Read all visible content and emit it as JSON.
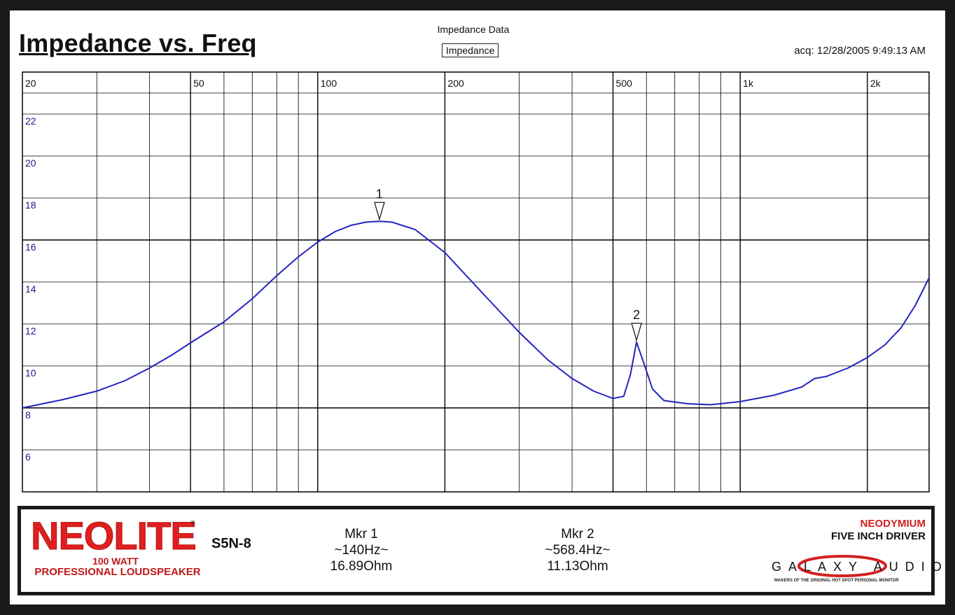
{
  "title": "Impedance vs. Freq",
  "data_title": "Impedance Data",
  "legend_label": "Impedance",
  "acq": "acq: 12/28/2005 9:49:13 AM",
  "colors": {
    "trace": "#2424c0",
    "grid": "#000000",
    "brand": "#e02020"
  },
  "chart_data": {
    "type": "line",
    "x_scale": "log",
    "xlim": [
      20,
      2800
    ],
    "ylim": [
      4,
      24
    ],
    "x_ticks": [
      {
        "v": 20,
        "label": "20"
      },
      {
        "v": 50,
        "label": "50"
      },
      {
        "v": 100,
        "label": "100"
      },
      {
        "v": 200,
        "label": "200"
      },
      {
        "v": 500,
        "label": "500"
      },
      {
        "v": 1000,
        "label": "1k"
      },
      {
        "v": 2000,
        "label": "2k"
      }
    ],
    "x_grid": [
      30,
      40,
      50,
      60,
      70,
      80,
      90,
      100,
      200,
      300,
      400,
      500,
      600,
      700,
      800,
      900,
      1000,
      2000
    ],
    "y_ticks": [
      {
        "v": 22,
        "label": "22"
      },
      {
        "v": 20,
        "label": "20"
      },
      {
        "v": 18,
        "label": "18"
      },
      {
        "v": 16,
        "label": "16"
      },
      {
        "v": 14,
        "label": "14"
      },
      {
        "v": 12,
        "label": "12"
      },
      {
        "v": 10,
        "label": "10"
      },
      {
        "v": 8,
        "label": "8"
      },
      {
        "v": 6,
        "label": "6"
      }
    ],
    "top_label": {
      "label": "20"
    },
    "series": [
      {
        "values": [
          [
            20,
            8.0
          ],
          [
            25,
            8.4
          ],
          [
            30,
            8.8
          ],
          [
            35,
            9.3
          ],
          [
            40,
            9.9
          ],
          [
            45,
            10.5
          ],
          [
            50,
            11.1
          ],
          [
            60,
            12.1
          ],
          [
            70,
            13.2
          ],
          [
            80,
            14.3
          ],
          [
            90,
            15.2
          ],
          [
            100,
            15.9
          ],
          [
            110,
            16.4
          ],
          [
            120,
            16.7
          ],
          [
            130,
            16.85
          ],
          [
            140,
            16.89
          ],
          [
            150,
            16.85
          ],
          [
            170,
            16.5
          ],
          [
            200,
            15.4
          ],
          [
            250,
            13.3
          ],
          [
            300,
            11.6
          ],
          [
            350,
            10.3
          ],
          [
            400,
            9.4
          ],
          [
            450,
            8.8
          ],
          [
            500,
            8.45
          ],
          [
            530,
            8.55
          ],
          [
            550,
            9.6
          ],
          [
            568.4,
            11.13
          ],
          [
            590,
            10.2
          ],
          [
            620,
            8.9
          ],
          [
            660,
            8.35
          ],
          [
            750,
            8.2
          ],
          [
            850,
            8.15
          ],
          [
            1000,
            8.3
          ],
          [
            1200,
            8.6
          ],
          [
            1400,
            9.0
          ],
          [
            1500,
            9.4
          ],
          [
            1600,
            9.5
          ],
          [
            1800,
            9.9
          ],
          [
            2000,
            10.4
          ],
          [
            2200,
            11.0
          ],
          [
            2400,
            11.8
          ],
          [
            2600,
            12.9
          ],
          [
            2800,
            14.2
          ]
        ]
      }
    ],
    "markers": [
      {
        "id": "1",
        "x": 140,
        "y": 16.89
      },
      {
        "id": "2",
        "x": 568.4,
        "y": 11.13
      }
    ]
  },
  "footer": {
    "brand": "NEOLITE",
    "brand_reg": "®",
    "watt": "100 WATT",
    "pro": "PROFESSIONAL LOUDSPEAKER",
    "model": "S5N-8",
    "mkr1": {
      "name": "Mkr 1",
      "freq": "~140Hz~",
      "ohm": "16.89Ohm"
    },
    "mkr2": {
      "name": "Mkr 2",
      "freq": "~568.4Hz~",
      "ohm": "11.13Ohm"
    },
    "neo": "NEODYMIUM",
    "five": "FIVE INCH DRIVER",
    "galaxy": "GALAXY AUDIO",
    "makers": "MAKERS OF THE ORIGINAL HOT SPOT PERSONAL MONITOR"
  }
}
